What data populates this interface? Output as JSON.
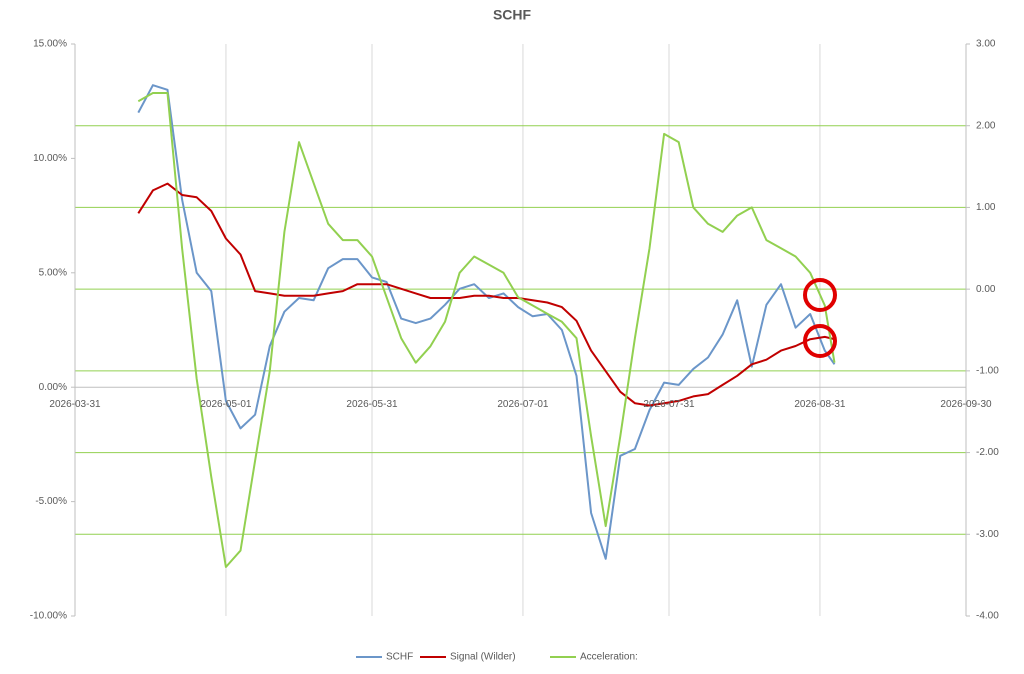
{
  "chart_data": {
    "type": "line",
    "title": "SCHF",
    "x": [
      "2026-04-13",
      "2026-04-16",
      "2026-04-19",
      "2026-04-22",
      "2026-04-25",
      "2026-04-28",
      "2026-05-01",
      "2026-05-04",
      "2026-05-07",
      "2026-05-10",
      "2026-05-13",
      "2026-05-16",
      "2026-05-19",
      "2026-05-22",
      "2026-05-25",
      "2026-05-28",
      "2026-05-31",
      "2026-06-03",
      "2026-06-06",
      "2026-06-09",
      "2026-06-12",
      "2026-06-15",
      "2026-06-18",
      "2026-06-21",
      "2026-06-24",
      "2026-06-27",
      "2026-06-30",
      "2026-07-03",
      "2026-07-06",
      "2026-07-09",
      "2026-07-12",
      "2026-07-15",
      "2026-07-18",
      "2026-07-21",
      "2026-07-24",
      "2026-07-27",
      "2026-07-30",
      "2026-08-02",
      "2026-08-05",
      "2026-08-08",
      "2026-08-11",
      "2026-08-14",
      "2026-08-17",
      "2026-08-20",
      "2026-08-23",
      "2026-08-26",
      "2026-08-29",
      "2026-09-01",
      "2026-09-03"
    ],
    "series": [
      {
        "name": "SCHF",
        "color": "#6b96c9",
        "values": [
          12.0,
          13.2,
          13.0,
          8.2,
          5.0,
          4.2,
          -0.6,
          -1.8,
          -1.2,
          1.8,
          3.3,
          3.9,
          3.8,
          5.2,
          5.6,
          5.6,
          4.8,
          4.6,
          3.0,
          2.8,
          3.0,
          3.6,
          4.3,
          4.5,
          3.9,
          4.1,
          3.5,
          3.1,
          3.2,
          2.5,
          0.5,
          -5.5,
          -7.5,
          -3.0,
          -2.7,
          -1.0,
          0.2,
          0.1,
          0.8,
          1.3,
          2.3,
          3.8,
          0.9,
          3.6,
          4.5,
          2.6,
          3.2,
          1.6,
          1.0
        ]
      },
      {
        "name": "Signal (Wilder)",
        "color": "#c00000",
        "values": [
          7.6,
          8.6,
          8.9,
          8.4,
          8.3,
          7.7,
          6.5,
          5.8,
          4.2,
          4.1,
          4.0,
          4.0,
          4.0,
          4.1,
          4.2,
          4.5,
          4.5,
          4.5,
          4.3,
          4.1,
          3.9,
          3.9,
          3.9,
          4.0,
          4.0,
          3.9,
          3.9,
          3.8,
          3.7,
          3.5,
          2.9,
          1.6,
          0.7,
          -0.2,
          -0.7,
          -0.8,
          -0.7,
          -0.6,
          -0.4,
          -0.3,
          0.1,
          0.5,
          1.0,
          1.2,
          1.6,
          1.8,
          2.1,
          2.2,
          2.1
        ]
      },
      {
        "name": "Acceleration:",
        "color": "#92d050",
        "axis": "y2",
        "values": [
          2.3,
          2.4,
          2.4,
          0.5,
          -1.1,
          -2.3,
          -3.4,
          -3.2,
          -2.1,
          -1.0,
          0.7,
          1.8,
          1.3,
          0.8,
          0.6,
          0.6,
          0.4,
          -0.1,
          -0.6,
          -0.9,
          -0.7,
          -0.4,
          0.2,
          0.4,
          0.3,
          0.2,
          -0.1,
          -0.2,
          -0.3,
          -0.4,
          -0.6,
          -1.8,
          -2.9,
          -1.8,
          -0.6,
          0.5,
          1.9,
          1.8,
          1.0,
          0.8,
          0.7,
          0.9,
          1.0,
          0.6,
          0.5,
          0.4,
          0.2,
          -0.2,
          -0.9
        ]
      }
    ],
    "xlim": [
      "2026-03-31",
      "2026-09-30"
    ],
    "xticks": [
      "2026-03-31",
      "2026-05-01",
      "2026-05-31",
      "2026-07-01",
      "2026-07-31",
      "2026-08-31",
      "2026-09-30"
    ],
    "ylim": [
      -10,
      15
    ],
    "yticks": [
      {
        "value": -10,
        "label": "-10.00%"
      },
      {
        "value": -5,
        "label": "-5.00%"
      },
      {
        "value": 0,
        "label": "0.00%"
      },
      {
        "value": 5,
        "label": "5.00%"
      },
      {
        "value": 10,
        "label": "10.00%"
      },
      {
        "value": 15,
        "label": "15.00%"
      }
    ],
    "y2lim": [
      -4,
      3
    ],
    "y2ticks": [
      {
        "value": -4,
        "label": "-4.00"
      },
      {
        "value": -3,
        "label": "-3.00"
      },
      {
        "value": -2,
        "label": "-2.00"
      },
      {
        "value": -1,
        "label": "-1.00"
      },
      {
        "value": 0,
        "label": "0.00"
      },
      {
        "value": 1,
        "label": "1.00"
      },
      {
        "value": 2,
        "label": "2.00"
      },
      {
        "value": 3,
        "label": "3.00"
      }
    ],
    "legend": "bottom"
  }
}
